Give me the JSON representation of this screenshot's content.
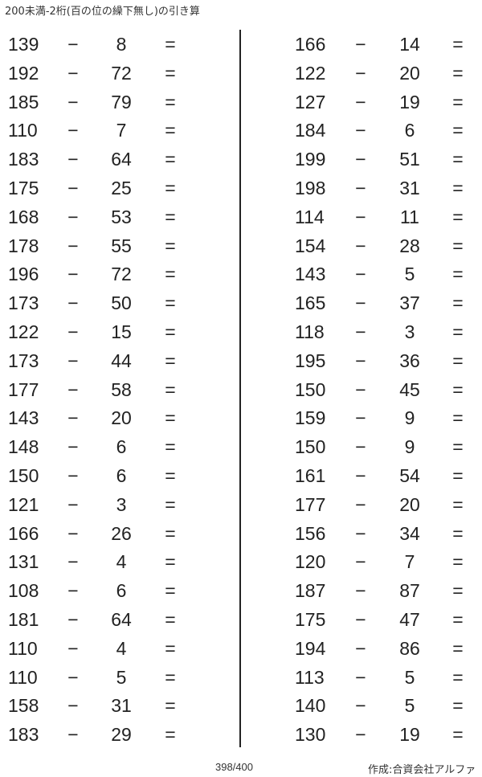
{
  "title": "200未満-2桁(百の位の繰下無し)の引き算",
  "operator": "−",
  "equals": "=",
  "left_problems": [
    [
      "139",
      "8"
    ],
    [
      "192",
      "72"
    ],
    [
      "185",
      "79"
    ],
    [
      "110",
      "7"
    ],
    [
      "183",
      "64"
    ],
    [
      "175",
      "25"
    ],
    [
      "168",
      "53"
    ],
    [
      "178",
      "55"
    ],
    [
      "196",
      "72"
    ],
    [
      "173",
      "50"
    ],
    [
      "122",
      "15"
    ],
    [
      "173",
      "44"
    ],
    [
      "177",
      "58"
    ],
    [
      "143",
      "20"
    ],
    [
      "148",
      "6"
    ],
    [
      "150",
      "6"
    ],
    [
      "121",
      "3"
    ],
    [
      "166",
      "26"
    ],
    [
      "131",
      "4"
    ],
    [
      "108",
      "6"
    ],
    [
      "181",
      "64"
    ],
    [
      "110",
      "4"
    ],
    [
      "110",
      "5"
    ],
    [
      "158",
      "31"
    ],
    [
      "183",
      "29"
    ]
  ],
  "right_problems": [
    [
      "166",
      "14"
    ],
    [
      "122",
      "20"
    ],
    [
      "127",
      "19"
    ],
    [
      "184",
      "6"
    ],
    [
      "199",
      "51"
    ],
    [
      "198",
      "31"
    ],
    [
      "114",
      "11"
    ],
    [
      "154",
      "28"
    ],
    [
      "143",
      "5"
    ],
    [
      "165",
      "37"
    ],
    [
      "118",
      "3"
    ],
    [
      "195",
      "36"
    ],
    [
      "150",
      "45"
    ],
    [
      "159",
      "9"
    ],
    [
      "150",
      "9"
    ],
    [
      "161",
      "54"
    ],
    [
      "177",
      "20"
    ],
    [
      "156",
      "34"
    ],
    [
      "120",
      "7"
    ],
    [
      "187",
      "87"
    ],
    [
      "175",
      "47"
    ],
    [
      "194",
      "86"
    ],
    [
      "113",
      "5"
    ],
    [
      "140",
      "5"
    ],
    [
      "130",
      "19"
    ]
  ],
  "footer": {
    "page": "398/400",
    "credit": "作成:合資会社アルファ"
  }
}
